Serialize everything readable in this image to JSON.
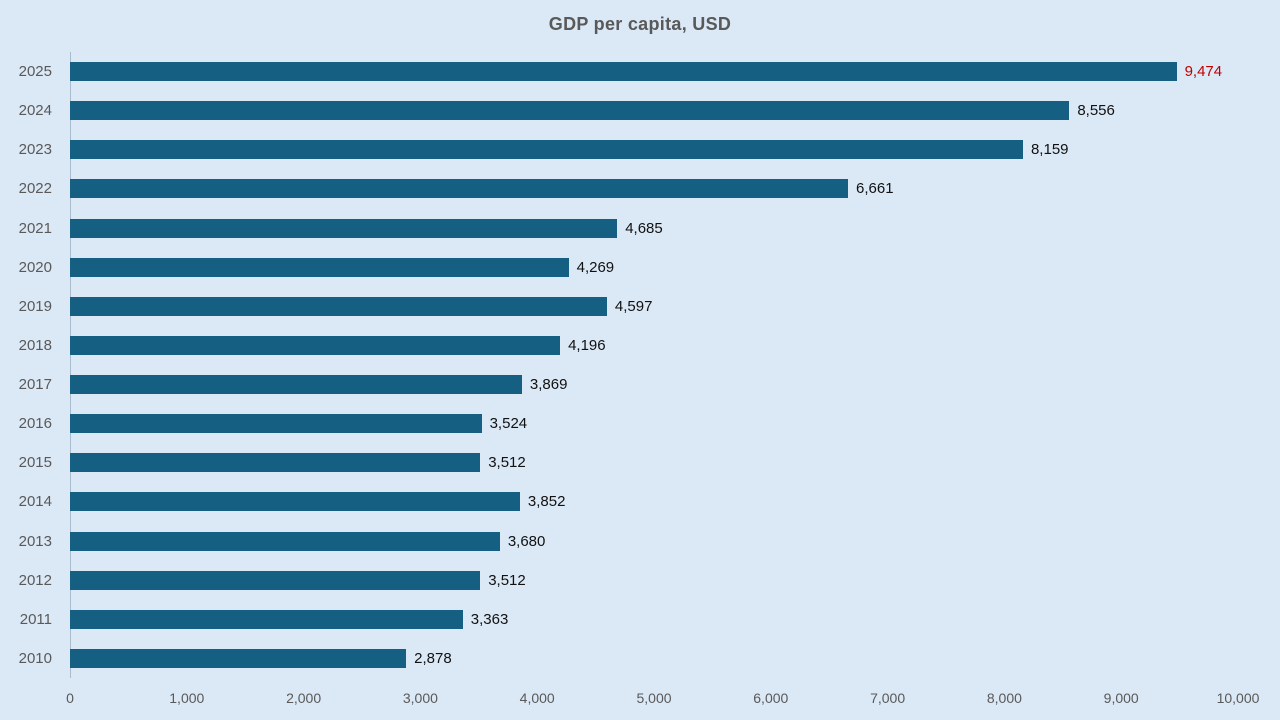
{
  "title": "GDP per capita, USD",
  "colors": {
    "background": "#dbe8f6",
    "bar": "#156082",
    "value_label": "#111111",
    "highlight_value_label": "#c00000",
    "axis_label": "#595959",
    "title": "#595959",
    "axis_line": "#a9bccf"
  },
  "chart_data": {
    "type": "bar",
    "orientation": "horizontal",
    "title": "GDP per capita, USD",
    "categories": [
      "2025",
      "2024",
      "2023",
      "2022",
      "2021",
      "2020",
      "2019",
      "2018",
      "2017",
      "2016",
      "2015",
      "2014",
      "2013",
      "2012",
      "2011",
      "2010"
    ],
    "values": [
      9474,
      8556,
      8159,
      6661,
      4685,
      4269,
      4597,
      4196,
      3869,
      3524,
      3512,
      3852,
      3680,
      3512,
      3363,
      2878
    ],
    "value_labels": [
      "9,474",
      "8,556",
      "8,159",
      "6,661",
      "4,685",
      "4,269",
      "4,597",
      "4,196",
      "3,869",
      "3,524",
      "3,512",
      "3,852",
      "3,680",
      "3,512",
      "3,363",
      "2,878"
    ],
    "highlight_category": "2025",
    "xlabel": "",
    "ylabel": "",
    "xlim": [
      0,
      10000
    ],
    "x_ticks": [
      0,
      1000,
      2000,
      3000,
      4000,
      5000,
      6000,
      7000,
      8000,
      9000,
      10000
    ],
    "x_tick_labels": [
      "0",
      "1,000",
      "2,000",
      "3,000",
      "4,000",
      "5,000",
      "6,000",
      "7,000",
      "8,000",
      "9,000",
      "10,000"
    ],
    "grid": false,
    "legend": false
  }
}
